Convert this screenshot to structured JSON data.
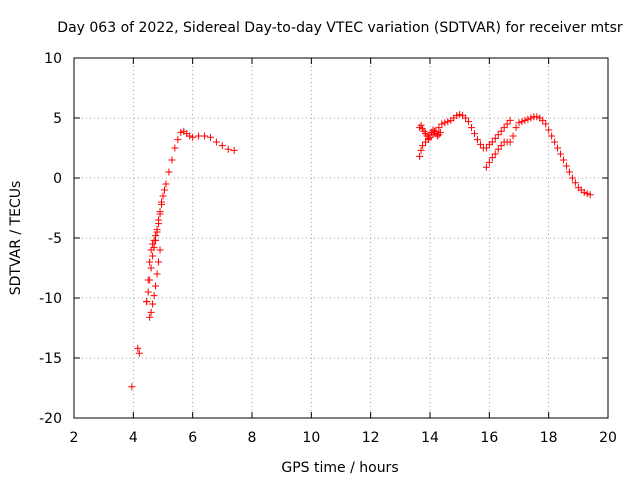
{
  "chart_data": {
    "type": "scatter",
    "title": "Day 063 of 2022, Sidereal Day-to-day VTEC variation (SDTVAR) for receiver mtsr",
    "xlabel": "GPS time / hours",
    "ylabel": "SDTVAR / TECUs",
    "xlim": [
      2,
      20
    ],
    "ylim": [
      -20,
      10
    ],
    "xticks": [
      2,
      4,
      6,
      8,
      10,
      12,
      14,
      16,
      18,
      20
    ],
    "yticks": [
      -20,
      -15,
      -10,
      -5,
      0,
      5,
      10
    ],
    "grid": true,
    "marker": "+",
    "colors": {
      "series": "#ff0000",
      "grid": "#a0a0a0",
      "axis": "#000000"
    },
    "series": [
      {
        "name": "SDTVAR",
        "x": [
          3.95,
          4.15,
          4.2,
          4.45,
          4.5,
          4.55,
          4.6,
          4.65,
          4.7,
          4.75,
          4.8,
          4.85,
          4.9,
          4.95,
          5.0,
          5.1,
          5.2,
          5.3,
          5.4,
          5.5,
          5.6,
          5.7,
          5.8,
          5.9,
          6.0,
          6.2,
          6.4,
          6.6,
          6.8,
          7.0,
          7.2,
          7.4,
          4.45,
          4.5,
          4.55,
          4.6,
          4.65,
          4.7,
          4.75,
          4.8,
          4.85,
          4.9,
          4.95,
          5.0,
          5.05,
          4.55,
          4.6,
          4.65,
          4.7,
          4.75,
          4.8,
          4.85,
          4.9,
          13.65,
          13.7,
          13.75,
          13.8,
          13.85,
          13.9,
          13.95,
          14.0,
          14.05,
          14.1,
          14.15,
          14.2,
          14.25,
          14.3,
          14.35,
          13.65,
          13.7,
          13.75,
          13.85,
          13.95,
          14.0,
          14.1,
          14.2,
          14.3,
          14.4,
          14.5,
          14.6,
          14.7,
          14.8,
          14.9,
          15.0,
          15.1,
          15.2,
          15.3,
          15.4,
          15.5,
          15.6,
          15.7,
          15.8,
          15.9,
          16.0,
          16.1,
          16.2,
          16.3,
          16.4,
          16.5,
          16.6,
          16.7,
          15.9,
          16.0,
          16.1,
          16.2,
          16.3,
          16.4,
          16.5,
          16.6,
          16.7,
          16.8,
          16.9,
          17.0,
          17.1,
          17.2,
          17.3,
          17.4,
          17.5,
          17.6,
          17.7,
          17.8,
          17.9,
          18.0,
          18.1,
          18.2,
          18.3,
          18.4,
          18.5,
          18.6,
          18.7,
          18.8,
          18.9,
          19.0,
          19.1,
          19.2,
          19.3,
          19.4
        ],
        "y": [
          -17.4,
          -14.2,
          -14.6,
          -10.3,
          -9.5,
          -8.5,
          -7.5,
          -6.5,
          -5.8,
          -5.2,
          -4.5,
          -3.8,
          -3.0,
          -2.2,
          -1.5,
          -0.5,
          0.5,
          1.5,
          2.5,
          3.2,
          3.8,
          3.9,
          3.7,
          3.5,
          3.4,
          3.5,
          3.5,
          3.4,
          3.0,
          2.7,
          2.4,
          2.3,
          -10.3,
          -8.5,
          -7.0,
          -6.0,
          -5.5,
          -5.2,
          -4.8,
          -4.3,
          -3.5,
          -2.8,
          -2.0,
          -1.5,
          -1.0,
          -11.6,
          -11.2,
          -10.5,
          -9.8,
          -9.0,
          -8.0,
          -7.0,
          -6.0,
          4.2,
          4.4,
          4.1,
          3.9,
          3.7,
          3.5,
          3.3,
          3.6,
          3.8,
          4.0,
          3.9,
          3.7,
          3.5,
          3.6,
          3.8,
          1.8,
          2.3,
          2.7,
          3.0,
          3.2,
          3.4,
          3.6,
          3.9,
          4.2,
          4.5,
          4.6,
          4.7,
          4.8,
          5.0,
          5.2,
          5.3,
          5.2,
          5.0,
          4.7,
          4.2,
          3.7,
          3.2,
          2.8,
          2.5,
          2.5,
          2.8,
          3.0,
          3.3,
          3.6,
          3.9,
          4.2,
          4.5,
          4.8,
          0.9,
          1.3,
          1.7,
          2.0,
          2.4,
          2.7,
          3.0,
          3.0,
          3.0,
          3.5,
          4.2,
          4.6,
          4.7,
          4.8,
          4.9,
          5.0,
          5.1,
          5.1,
          5.0,
          4.8,
          4.5,
          4.0,
          3.5,
          3.0,
          2.5,
          2.0,
          1.5,
          1.0,
          0.5,
          0.0,
          -0.4,
          -0.8,
          -1.0,
          -1.2,
          -1.3,
          -1.4
        ]
      }
    ]
  }
}
